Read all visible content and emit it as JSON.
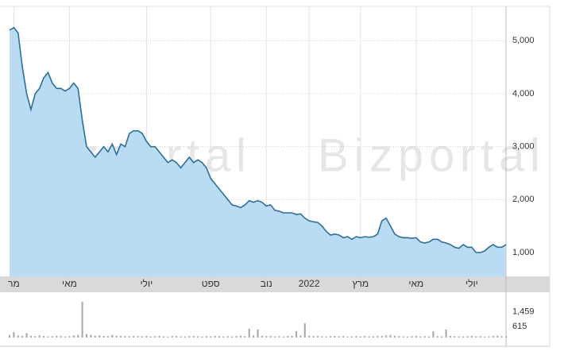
{
  "chart_data": [
    {
      "type": "area",
      "watermark": "Bizportal",
      "color": "#a9d3f0",
      "line_color": "#2b6f9c",
      "grid": true,
      "values": [
        5200,
        5250,
        5150,
        4500,
        4000,
        3700,
        4000,
        4100,
        4300,
        4400,
        4200,
        4100,
        4100,
        4050,
        4100,
        4200,
        4100,
        3500,
        3000,
        2900,
        2800,
        2900,
        3000,
        2900,
        3050,
        2850,
        3050,
        3000,
        3250,
        3300,
        3300,
        3250,
        3100,
        3000,
        3000,
        2900,
        2800,
        2700,
        2750,
        2700,
        2600,
        2700,
        2800,
        2700,
        2750,
        2700,
        2600,
        2400,
        2300,
        2200,
        2100,
        2000,
        1900,
        1880,
        1850,
        1900,
        1980,
        1950,
        1980,
        1950,
        1880,
        1900,
        1800,
        1780,
        1750,
        1750,
        1750,
        1720,
        1730,
        1650,
        1600,
        1580,
        1570,
        1500,
        1400,
        1330,
        1350,
        1330,
        1280,
        1300,
        1250,
        1300,
        1280,
        1300,
        1290,
        1300,
        1350,
        1600,
        1650,
        1500,
        1350,
        1300,
        1280,
        1280,
        1270,
        1280,
        1200,
        1180,
        1200,
        1250,
        1250,
        1200,
        1180,
        1150,
        1100,
        1080,
        1150,
        1100,
        1100,
        1000,
        1000,
        1030,
        1100,
        1150,
        1100,
        1100,
        1150
      ],
      "xticks": [
        {
          "value": 1,
          "label": "מר"
        },
        {
          "value": 14,
          "label": "מאי"
        },
        {
          "value": 32,
          "label": "יולי"
        },
        {
          "value": 47,
          "label": "ספט"
        },
        {
          "value": 60,
          "label": "נוב"
        },
        {
          "value": 70,
          "label": "2022"
        },
        {
          "value": 82,
          "label": "מרץ"
        },
        {
          "value": 95,
          "label": "מאי"
        },
        {
          "value": 108,
          "label": "יולי"
        }
      ],
      "ylim": [
        550,
        5650
      ],
      "yticks": [
        {
          "value": 1000,
          "label": "1,000"
        },
        {
          "value": 2000,
          "label": "2,000"
        },
        {
          "value": 3000,
          "label": "3,000"
        },
        {
          "value": 4000,
          "label": "4,000"
        },
        {
          "value": 5000,
          "label": "5,000"
        }
      ]
    },
    {
      "type": "bar",
      "color": "#a6a6a6",
      "values": [
        150,
        300,
        120,
        90,
        250,
        100,
        80,
        120,
        90,
        70,
        80,
        100,
        90,
        60,
        80,
        120,
        150,
        2000,
        200,
        150,
        100,
        120,
        90,
        80,
        150,
        100,
        90,
        80,
        70,
        90,
        80,
        70,
        90,
        60,
        80,
        100,
        70,
        60,
        80,
        90,
        70,
        60,
        80,
        90,
        70,
        60,
        80,
        70,
        90,
        80,
        70,
        80,
        60,
        90,
        100,
        80,
        500,
        120,
        450,
        100,
        80,
        90,
        70,
        80,
        60,
        90,
        100,
        350,
        120,
        800,
        100,
        80,
        90,
        70,
        60,
        80,
        90,
        70,
        80,
        60,
        70,
        80,
        60,
        90,
        70,
        80,
        100,
        90,
        120,
        150,
        100,
        80,
        70,
        60,
        80,
        90,
        70,
        80,
        60,
        350,
        80,
        70,
        450,
        90,
        80,
        70,
        60,
        80,
        90,
        70,
        80,
        60,
        70,
        90,
        100,
        80,
        70
      ],
      "ylim": [
        0,
        2100
      ],
      "yticks": [
        {
          "value": 615,
          "label": "615"
        },
        {
          "value": 1459,
          "label": "1,459"
        }
      ]
    }
  ]
}
